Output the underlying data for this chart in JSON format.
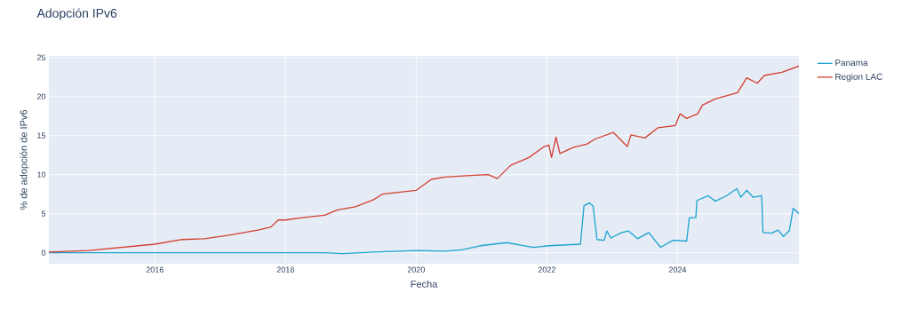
{
  "chart_data": {
    "type": "line",
    "title": "Adopción IPv6",
    "xlabel": "Fecha",
    "ylabel": "% de adopción de IPv6",
    "xlim": [
      "2014-05-19",
      "2025-11-10"
    ],
    "xticks": [
      "2016",
      "2018",
      "2020",
      "2022",
      "2024"
    ],
    "ylim": [
      -1.4,
      25.2
    ],
    "yticks": [
      0,
      5,
      10,
      15,
      20,
      25
    ],
    "grid": true,
    "legend": "right",
    "marker": "none",
    "line_style": "solid",
    "series": [
      {
        "name": "Panama",
        "color": "#1ba3cf",
        "x": [
          "2014-05-19",
          "2018-01-01",
          "2018-08-07",
          "2018-11-14",
          "2019-05-08",
          "2020-01-01",
          "2020-06-10",
          "2020-09-17",
          "2020-12-24",
          "2021-05-22",
          "2021-08-29",
          "2021-10-19",
          "2022-01-12",
          "2022-07-08",
          "2022-07-27",
          "2022-08-26",
          "2022-09-16",
          "2022-10-08",
          "2022-11-17",
          "2022-12-02",
          "2022-12-24",
          "2023-02-24",
          "2023-04-01",
          "2023-05-22",
          "2023-07-24",
          "2023-09-28",
          "2023-12-06",
          "2024-02-21",
          "2024-03-07",
          "2024-04-12",
          "2024-04-19",
          "2024-06-21",
          "2024-07-31",
          "2024-10-01",
          "2024-11-28",
          "2024-12-20",
          "2025-01-22",
          "2025-02-28",
          "2025-04-16",
          "2025-04-23",
          "2025-06-10",
          "2025-07-16",
          "2025-08-15",
          "2025-09-17",
          "2025-10-09",
          "2025-11-10"
        ],
        "values": [
          0.0,
          0.0,
          0.0,
          -0.1,
          0.1,
          0.3,
          0.2,
          0.4,
          0.9,
          1.3,
          0.9,
          0.7,
          0.9,
          1.1,
          6.0,
          6.4,
          6.0,
          1.7,
          1.6,
          2.8,
          1.9,
          2.6,
          2.8,
          1.8,
          2.6,
          0.7,
          1.6,
          1.5,
          4.5,
          4.5,
          6.7,
          7.3,
          6.6,
          7.3,
          8.2,
          7.1,
          8.0,
          7.1,
          7.3,
          2.6,
          2.5,
          2.9,
          2.1,
          2.8,
          5.7,
          5.0
        ]
      },
      {
        "name": "Region LAC",
        "color": "#d33f2f",
        "x": [
          "2014-05-19",
          "2014-12-27",
          "2016-01-01",
          "2016-06-03",
          "2016-10-05",
          "2017-03-03",
          "2017-07-31",
          "2017-10-12",
          "2017-11-21",
          "2018-01-01",
          "2018-04-05",
          "2018-08-07",
          "2018-10-19",
          "2019-01-26",
          "2019-05-08",
          "2019-06-25",
          "2020-01-01",
          "2020-03-26",
          "2020-06-10",
          "2020-11-03",
          "2021-02-07",
          "2021-03-30",
          "2021-06-13",
          "2021-09-23",
          "2021-12-17",
          "2022-01-12",
          "2022-01-27",
          "2022-02-21",
          "2022-03-15",
          "2022-05-30",
          "2022-08-11",
          "2022-10-01",
          "2023-01-08",
          "2023-03-26",
          "2023-04-16",
          "2023-07-02",
          "2023-09-13",
          "2023-12-20",
          "2024-01-15",
          "2024-02-21",
          "2024-04-23",
          "2024-05-19",
          "2024-07-31",
          "2024-12-02",
          "2025-01-22",
          "2025-03-22",
          "2025-05-01",
          "2025-08-07",
          "2025-11-10"
        ],
        "values": [
          0.1,
          0.3,
          1.1,
          1.7,
          1.8,
          2.3,
          2.9,
          3.3,
          4.2,
          4.2,
          4.5,
          4.8,
          5.5,
          5.9,
          6.8,
          7.5,
          8.0,
          9.4,
          9.7,
          9.9,
          10.0,
          9.5,
          11.2,
          12.2,
          13.6,
          13.8,
          12.2,
          14.8,
          12.7,
          13.5,
          13.9,
          14.6,
          15.4,
          13.6,
          15.1,
          14.7,
          16.0,
          16.3,
          17.8,
          17.2,
          17.8,
          18.9,
          19.7,
          20.5,
          22.4,
          21.7,
          22.7,
          23.1,
          23.9
        ]
      }
    ]
  }
}
